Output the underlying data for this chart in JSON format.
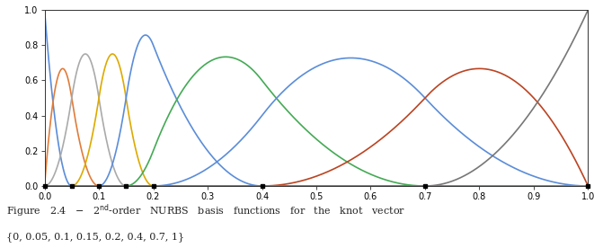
{
  "knot_vector": [
    0,
    0,
    0,
    0.05,
    0.1,
    0.15,
    0.2,
    0.4,
    0.7,
    1.0,
    1.0,
    1.0
  ],
  "order": 2,
  "xlim": [
    0.0,
    1.0
  ],
  "ylim": [
    0.0,
    1.0
  ],
  "xticks": [
    0.0,
    0.1,
    0.2,
    0.3,
    0.4,
    0.5,
    0.6,
    0.7,
    0.8,
    0.9,
    1.0
  ],
  "yticks": [
    0.0,
    0.2,
    0.4,
    0.6,
    0.8,
    1.0
  ],
  "curve_colors": [
    "#5b8dd9",
    "#e07c3a",
    "#aaaaaa",
    "#ddaa00",
    "#5b8dd9",
    "#44aa55",
    "#5b8dd9",
    "#bb4422",
    "#777777"
  ],
  "background_color": "#ffffff",
  "line_width": 1.2,
  "knot_markers": [
    0.0,
    0.05,
    0.1,
    0.15,
    0.2,
    0.4,
    0.7,
    1.0
  ]
}
